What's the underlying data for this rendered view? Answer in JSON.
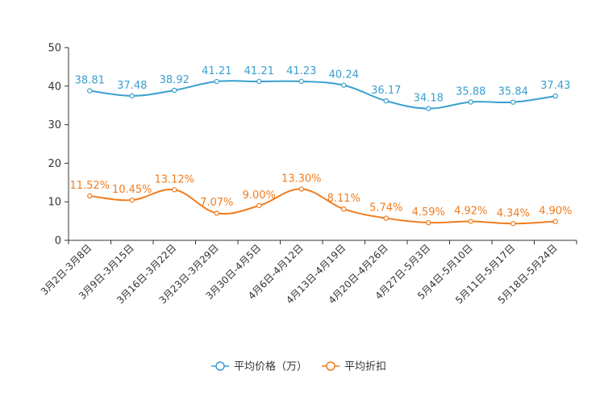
{
  "chart_data": {
    "type": "line",
    "categories": [
      "3月2日-3月8日",
      "3月9日-3月15日",
      "3月16日-3月22日",
      "3月23日-3月29日",
      "3月30日-4月5日",
      "4月6日-4月12日",
      "4月13日-4月19日",
      "4月20日-4月26日",
      "4月27日-5月3日",
      "5月4日-5月10日",
      "5月11日-5月17日",
      "5月18日-5月24日"
    ],
    "ylim": [
      0,
      50
    ],
    "yticks": [
      0,
      10,
      20,
      30,
      40,
      50
    ],
    "legend_position": "bottom-center",
    "series": [
      {
        "name": "平均价格（万）",
        "color": "#3a9fcf",
        "values": [
          38.81,
          37.48,
          38.92,
          41.21,
          41.21,
          41.23,
          40.24,
          36.17,
          34.18,
          35.88,
          35.84,
          37.43
        ],
        "labels": [
          "38.81",
          "37.48",
          "38.92",
          "41.21",
          "41.21",
          "41.23",
          "40.24",
          "36.17",
          "34.18",
          "35.88",
          "35.84",
          "37.43"
        ]
      },
      {
        "name": "平均折扣",
        "color": "#f07c1e",
        "values": [
          11.52,
          10.45,
          13.12,
          7.07,
          9.0,
          13.3,
          8.11,
          5.74,
          4.59,
          4.92,
          4.34,
          4.9
        ],
        "labels": [
          "11.52%",
          "10.45%",
          "13.12%",
          "7.07%",
          "9.00%",
          "13.30%",
          "8.11%",
          "5.74%",
          "4.59%",
          "4.92%",
          "4.34%",
          "4.90%"
        ]
      }
    ]
  }
}
